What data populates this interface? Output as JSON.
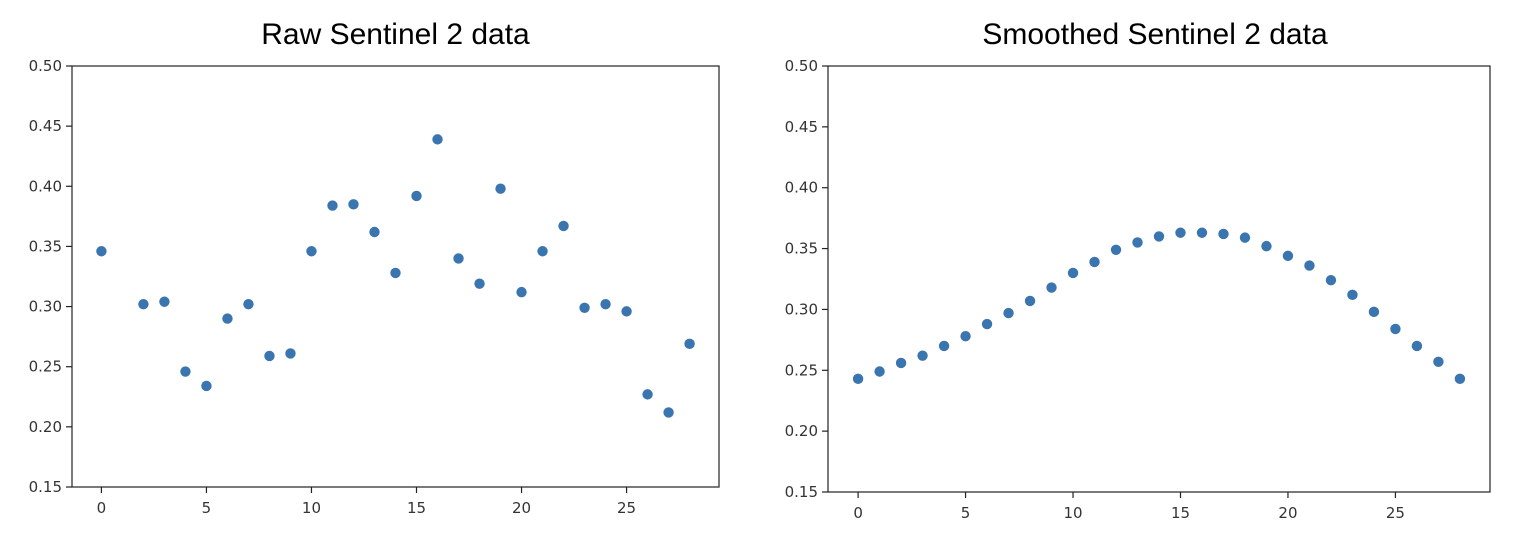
{
  "chart_data": [
    {
      "type": "scatter",
      "title": "Raw Sentinel 2 data",
      "xlabel": "",
      "ylabel": "",
      "xlim": [
        -1.4,
        29.4
      ],
      "ylim": [
        0.15,
        0.5
      ],
      "xticks": [
        0,
        5,
        10,
        15,
        20,
        25
      ],
      "xtick_labels": [
        "0",
        "5",
        "10",
        "15",
        "20",
        "25"
      ],
      "yticks": [
        0.15,
        0.2,
        0.25,
        0.3,
        0.35,
        0.4,
        0.45,
        0.5
      ],
      "ytick_labels": [
        "0.15",
        "0.20",
        "0.25",
        "0.30",
        "0.35",
        "0.40",
        "0.45",
        "0.50"
      ],
      "grid": false,
      "marker_color": "#3a75b0",
      "x": [
        0,
        2,
        3,
        4,
        5,
        6,
        7,
        8,
        9,
        10,
        11,
        12,
        13,
        14,
        15,
        16,
        17,
        18,
        19,
        20,
        21,
        22,
        23,
        24,
        25,
        26,
        27,
        28
      ],
      "y": [
        0.346,
        0.302,
        0.304,
        0.246,
        0.234,
        0.29,
        0.302,
        0.259,
        0.261,
        0.346,
        0.384,
        0.385,
        0.362,
        0.328,
        0.392,
        0.439,
        0.34,
        0.319,
        0.398,
        0.312,
        0.346,
        0.367,
        0.299,
        0.302,
        0.296,
        0.227,
        0.212,
        0.269
      ]
    },
    {
      "type": "scatter",
      "title": "Smoothed Sentinel 2 data",
      "xlabel": "",
      "ylabel": "",
      "xlim": [
        -1.4,
        29.4
      ],
      "ylim": [
        0.15,
        0.5
      ],
      "xticks": [
        0,
        5,
        10,
        15,
        20,
        25
      ],
      "xtick_labels": [
        "0",
        "5",
        "10",
        "15",
        "20",
        "25"
      ],
      "yticks": [
        0.15,
        0.2,
        0.25,
        0.3,
        0.35,
        0.4,
        0.45,
        0.5
      ],
      "ytick_labels": [
        "0.15",
        "0.20",
        "0.25",
        "0.30",
        "0.35",
        "0.40",
        "0.45",
        "0.50"
      ],
      "grid": false,
      "marker_color": "#3a75b0",
      "x": [
        0,
        1,
        2,
        3,
        4,
        5,
        6,
        7,
        8,
        9,
        10,
        11,
        12,
        13,
        14,
        15,
        16,
        17,
        18,
        19,
        20,
        21,
        22,
        23,
        24,
        25,
        26,
        27,
        28
      ],
      "y": [
        0.243,
        0.249,
        0.256,
        0.262,
        0.27,
        0.278,
        0.288,
        0.297,
        0.307,
        0.318,
        0.33,
        0.339,
        0.349,
        0.355,
        0.36,
        0.363,
        0.363,
        0.362,
        0.359,
        0.352,
        0.344,
        0.336,
        0.324,
        0.312,
        0.298,
        0.284,
        0.27,
        0.257,
        0.243
      ]
    }
  ]
}
